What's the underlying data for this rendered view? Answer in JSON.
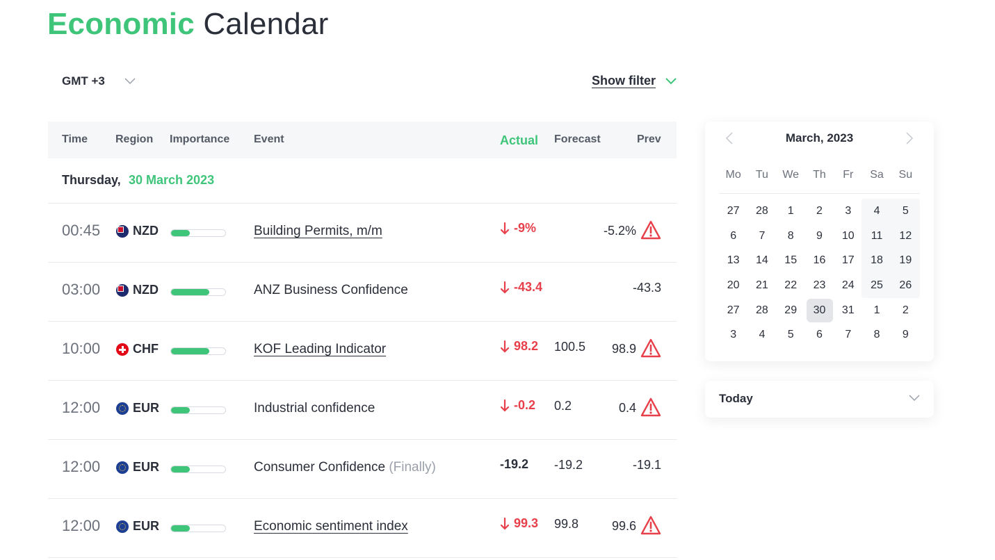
{
  "header": {
    "title_accent": "Economic",
    "title_rest": "Calendar"
  },
  "timezone": {
    "label": "GMT +3"
  },
  "filter": {
    "label": "Show filter"
  },
  "columns": {
    "time": "Time",
    "region": "Region",
    "importance": "Importance",
    "event": "Event",
    "actual": "Actual",
    "forecast": "Forecast",
    "prev": "Prev"
  },
  "day": {
    "weekday": "Thursday,",
    "date": "30 March 2023"
  },
  "events": [
    {
      "time": "00:45",
      "region": "NZD",
      "importance": 0.35,
      "event": "Building Permits, m/m",
      "note": "",
      "actual": "-9%",
      "forecast": "",
      "prev": "-5.2%"
    },
    {
      "time": "03:00",
      "region": "NZD",
      "importance": 0.7,
      "event": "ANZ Business Confidence",
      "note": "",
      "actual": "-43.4",
      "forecast": "",
      "prev": "-43.3"
    },
    {
      "time": "10:00",
      "region": "CHF",
      "importance": 0.7,
      "event": "KOF Leading Indicator",
      "note": "",
      "actual": "98.2",
      "forecast": "100.5",
      "prev": "98.9"
    },
    {
      "time": "12:00",
      "region": "EUR",
      "importance": 0.35,
      "event": "Industrial confidence",
      "note": "",
      "actual": "-0.2",
      "forecast": "0.2",
      "prev": "0.4"
    },
    {
      "time": "12:00",
      "region": "EUR",
      "importance": 0.35,
      "event": "Consumer Confidence",
      "note": "(Finally)",
      "actual": "-19.2",
      "forecast": "-19.2",
      "prev": "-19.1"
    },
    {
      "time": "12:00",
      "region": "EUR",
      "importance": 0.35,
      "event": "Economic sentiment index",
      "note": "",
      "actual": "99.3",
      "forecast": "99.8",
      "prev": "99.6"
    }
  ],
  "calendar": {
    "month_label": "March, 2023",
    "weekdays": [
      "Mo",
      "Tu",
      "We",
      "Th",
      "Fr",
      "Sa",
      "Su"
    ],
    "weeks": [
      [
        "27",
        "28",
        "1",
        "2",
        "3",
        "4",
        "5"
      ],
      [
        "6",
        "7",
        "8",
        "9",
        "10",
        "11",
        "12"
      ],
      [
        "13",
        "14",
        "15",
        "16",
        "17",
        "18",
        "19"
      ],
      [
        "20",
        "21",
        "22",
        "23",
        "24",
        "25",
        "26"
      ],
      [
        "27",
        "28",
        "29",
        "30",
        "31",
        "1",
        "2"
      ],
      [
        "3",
        "4",
        "5",
        "6",
        "7",
        "8",
        "9"
      ]
    ],
    "selected": "30"
  },
  "today_panel": {
    "label": "Today"
  },
  "colors": {
    "accent": "#3ec57a",
    "negative": "#e8404b",
    "text": "#2b2f3a"
  }
}
